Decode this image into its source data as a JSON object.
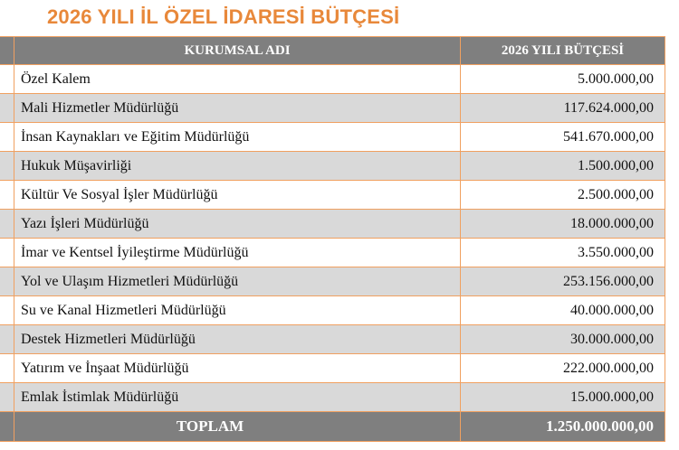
{
  "title": "2026 YILI İL ÖZEL İDARESİ BÜTÇESİ",
  "table": {
    "headers": [
      "KURUMSAL ADI",
      "2026 YILI BÜTÇESİ"
    ],
    "rows": [
      {
        "name": "Özel Kalem",
        "value": "5.000.000,00"
      },
      {
        "name": "Mali Hizmetler Müdürlüğü",
        "value": "117.624.000,00"
      },
      {
        "name": "İnsan Kaynakları ve Eğitim Müdürlüğü",
        "value": "541.670.000,00"
      },
      {
        "name": "Hukuk Müşavirliği",
        "value": "1.500.000,00"
      },
      {
        "name": "Kültür Ve Sosyal İşler Müdürlüğü",
        "value": "2.500.000,00"
      },
      {
        "name": "Yazı İşleri Müdürlüğü",
        "value": "18.000.000,00"
      },
      {
        "name": "İmar ve Kentsel İyileştirme Müdürlüğü",
        "value": "3.550.000,00"
      },
      {
        "name": "Yol ve Ulaşım Hizmetleri Müdürlüğü",
        "value": "253.156.000,00"
      },
      {
        "name": "Su ve Kanal Hizmetleri Müdürlüğü",
        "value": "40.000.000,00"
      },
      {
        "name": "Destek Hizmetleri Müdürlüğü",
        "value": "30.000.000,00"
      },
      {
        "name": "Yatırım ve İnşaat Müdürlüğü",
        "value": "222.000.000,00"
      },
      {
        "name": "Emlak İstimlak Müdürlüğü",
        "value": "15.000.000,00"
      }
    ],
    "total": {
      "label": "TOPLAM",
      "value": "1.250.000.000,00"
    }
  },
  "colors": {
    "title": "#e8883a",
    "header_bg": "#7f7f7f",
    "row_alt_bg": "#d9d9d9",
    "border": "#f0a060"
  }
}
